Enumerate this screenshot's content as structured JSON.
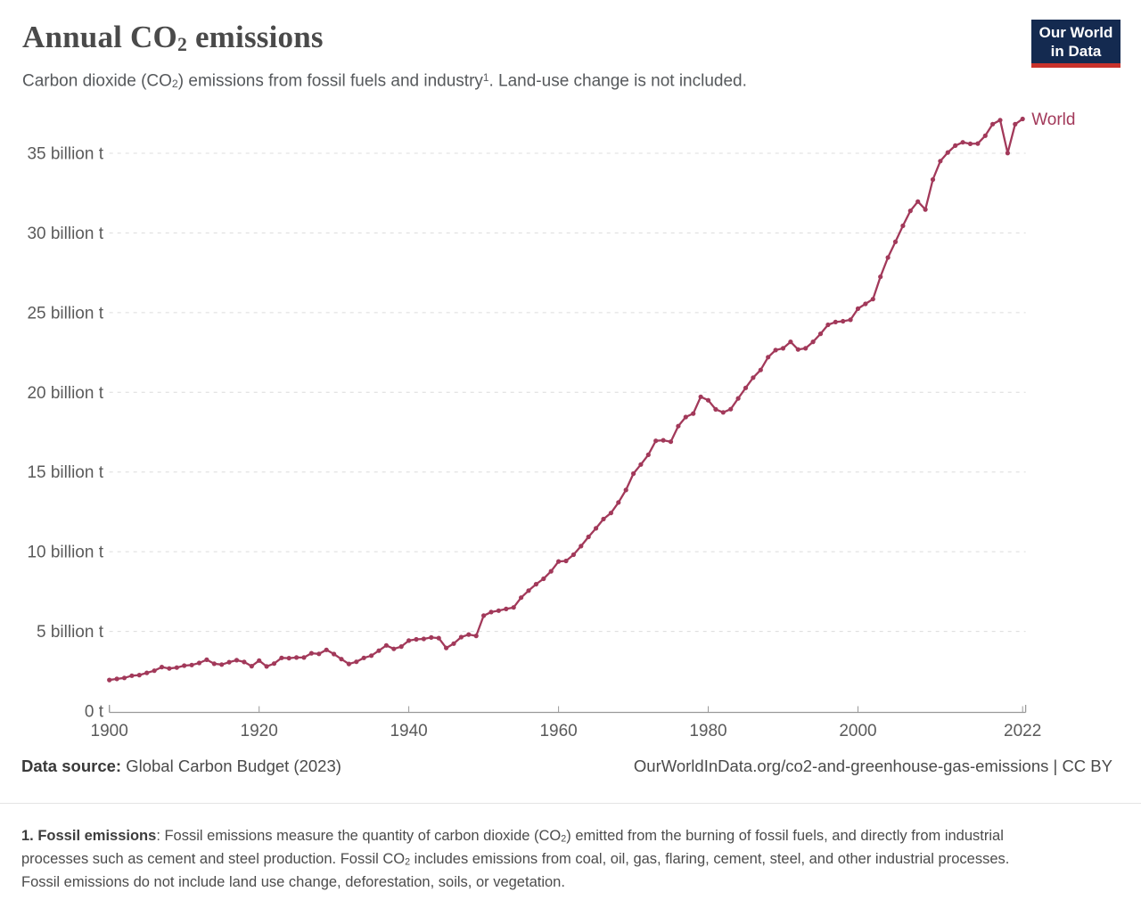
{
  "header": {
    "title": {
      "pre": "Annual CO",
      "sub": "2",
      "post": " emissions"
    },
    "subtitle": {
      "p1": "Carbon dioxide (CO",
      "sub1": "2",
      "p2": ") emissions from fossil fuels and industry",
      "sup1": "1",
      "p3": ". Land-use change is not included."
    },
    "logo": {
      "line1": "Our World",
      "line2": "in Data",
      "bg": "#142a50",
      "accent": "#c8322b"
    }
  },
  "chart_data": {
    "type": "line",
    "title": "Annual CO₂ emissions",
    "xlabel": "",
    "ylabel": "",
    "x_domain": [
      1900,
      2022.4
    ],
    "x_ticks": [
      1900,
      1920,
      1940,
      1960,
      1980,
      2000,
      2022
    ],
    "ylim": [
      0,
      38
    ],
    "y_ticks": [
      {
        "value": 0,
        "label": "0 t"
      },
      {
        "value": 5,
        "label": "5 billion t"
      },
      {
        "value": 10,
        "label": "10 billion t"
      },
      {
        "value": 15,
        "label": "15 billion t"
      },
      {
        "value": 20,
        "label": "20 billion t"
      },
      {
        "value": 25,
        "label": "25 billion t"
      },
      {
        "value": 30,
        "label": "30 billion t"
      },
      {
        "value": 35,
        "label": "35 billion t"
      }
    ],
    "grid": "horizontal-dashed",
    "grid_color": "#dcdcdc",
    "axis_color": "#9a9a9a",
    "tick_label_color": "#5b5b5b",
    "legend_position": "end-of-line-label",
    "series": [
      {
        "name": "World",
        "color": "#a2395a",
        "unit": "billion tonnes CO₂",
        "start_year": 1900,
        "end_year": 2022,
        "values": [
          1.95,
          2.02,
          2.08,
          2.22,
          2.26,
          2.4,
          2.53,
          2.76,
          2.67,
          2.73,
          2.85,
          2.89,
          3.02,
          3.22,
          2.97,
          2.92,
          3.07,
          3.19,
          3.08,
          2.82,
          3.17,
          2.8,
          2.98,
          3.34,
          3.32,
          3.36,
          3.36,
          3.63,
          3.59,
          3.84,
          3.58,
          3.26,
          2.96,
          3.09,
          3.34,
          3.48,
          3.79,
          4.12,
          3.9,
          4.05,
          4.42,
          4.5,
          4.53,
          4.62,
          4.58,
          3.96,
          4.23,
          4.64,
          4.8,
          4.72,
          5.99,
          6.21,
          6.3,
          6.41,
          6.5,
          7.12,
          7.56,
          7.96,
          8.3,
          8.77,
          9.39,
          9.42,
          9.81,
          10.35,
          10.93,
          11.47,
          12.05,
          12.43,
          13.09,
          13.87,
          14.9,
          15.47,
          16.08,
          16.96,
          16.99,
          16.9,
          17.88,
          18.45,
          18.67,
          19.72,
          19.5,
          18.93,
          18.74,
          18.94,
          19.62,
          20.28,
          20.92,
          21.4,
          22.21,
          22.65,
          22.76,
          23.17,
          22.69,
          22.76,
          23.17,
          23.67,
          24.24,
          24.41,
          24.46,
          24.55,
          25.25,
          25.55,
          25.85,
          27.25,
          28.46,
          29.44,
          30.45,
          31.39,
          31.97,
          31.47,
          33.35,
          34.51,
          35.05,
          35.48,
          35.69,
          35.59,
          35.61,
          36.1,
          36.83,
          37.08,
          35.01,
          36.82,
          37.15
        ]
      }
    ]
  },
  "footer": {
    "source_label": "Data source:",
    "source_value": " Global Carbon Budget (2023)",
    "rights": "OurWorldInData.org/co2-and-greenhouse-gas-emissions | CC BY"
  },
  "note": {
    "lead": "1. Fossil emissions",
    "n1": ": Fossil emissions measure the quantity of carbon dioxide (CO",
    "sub1": "2",
    "n2": ") emitted from the burning of fossil fuels, and directly from industrial processes such as cement and steel production. Fossil CO",
    "sub2": "2",
    "n3": " includes emissions from coal, oil, gas, flaring, cement, steel, and other industrial processes. Fossil emissions do not include land use change, deforestation, soils, or vegetation."
  }
}
